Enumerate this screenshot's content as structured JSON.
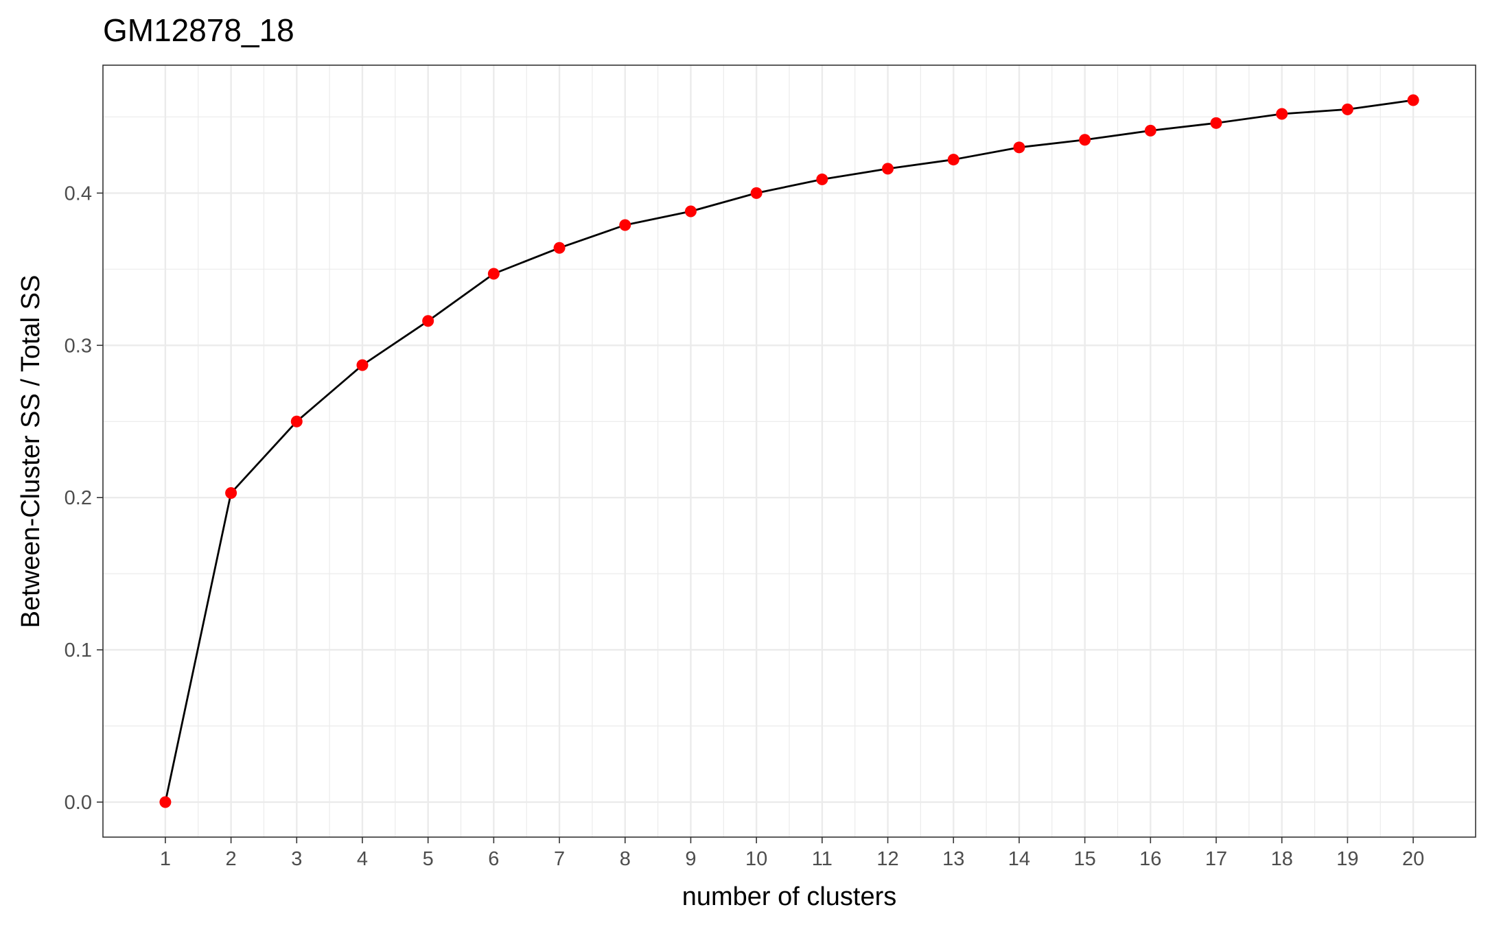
{
  "chart_data": {
    "type": "line",
    "title": "GM12878_18",
    "xlabel": "number of clusters",
    "ylabel": "Between-Cluster SS / Total SS",
    "x": [
      1,
      2,
      3,
      4,
      5,
      6,
      7,
      8,
      9,
      10,
      11,
      12,
      13,
      14,
      15,
      16,
      17,
      18,
      19,
      20
    ],
    "x_tick_labels": [
      "1",
      "2",
      "3",
      "4",
      "5",
      "6",
      "7",
      "8",
      "9",
      "10",
      "11",
      "12",
      "13",
      "14",
      "15",
      "16",
      "17",
      "18",
      "19",
      "20"
    ],
    "y": [
      0.0,
      0.203,
      0.25,
      0.287,
      0.316,
      0.347,
      0.364,
      0.379,
      0.388,
      0.4,
      0.409,
      0.416,
      0.422,
      0.43,
      0.435,
      0.441,
      0.446,
      0.452,
      0.455,
      0.461
    ],
    "y_ticks": [
      0.0,
      0.1,
      0.2,
      0.3,
      0.4
    ],
    "y_tick_labels": [
      "0.0",
      "0.1",
      "0.2",
      "0.3",
      "0.4"
    ],
    "xlim": [
      0.05,
      20.95
    ],
    "ylim": [
      -0.023,
      0.484
    ],
    "grid": true,
    "line_color": "#000000",
    "point_color": "#ff0000",
    "grid_color": "#ebebeb",
    "legend": "none"
  }
}
